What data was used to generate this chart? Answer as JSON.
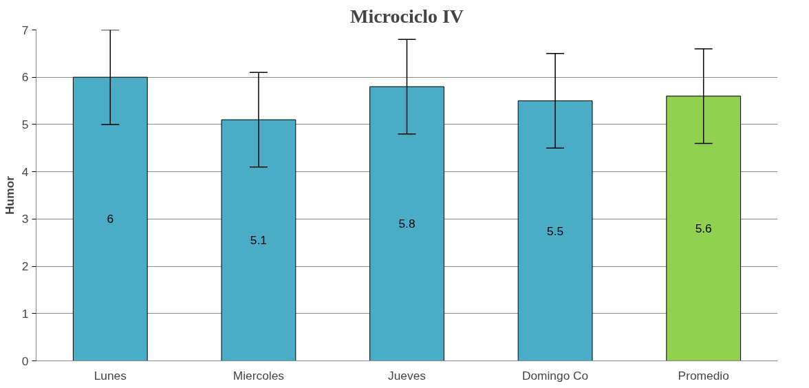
{
  "chart_data": {
    "type": "bar",
    "title": "Microciclo IV",
    "ylabel": "Humor",
    "categories": [
      "Lunes",
      "Miercoles",
      "Jueves",
      "Domingo Co",
      "Promedio"
    ],
    "values": [
      6,
      5.1,
      5.8,
      5.5,
      5.6
    ],
    "colors": [
      "#4bacc6",
      "#4bacc6",
      "#4bacc6",
      "#4bacc6",
      "#92d050"
    ],
    "errors": [
      1,
      1,
      1,
      1,
      1
    ],
    "ylim": [
      0,
      7
    ],
    "yticks": [
      0,
      1,
      2,
      3,
      4,
      5,
      6,
      7
    ],
    "grid": "y",
    "data_labels": true
  }
}
